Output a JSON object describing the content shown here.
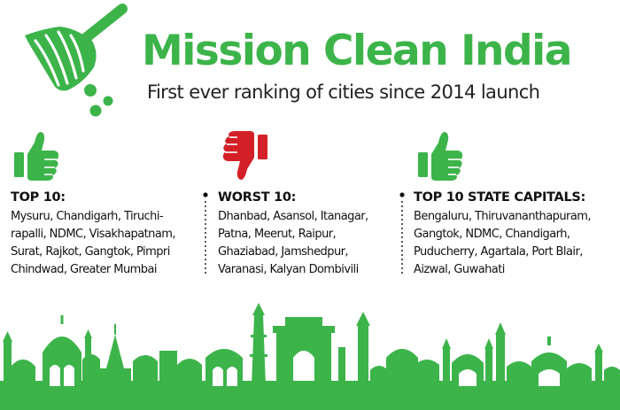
{
  "header": {
    "title": "Mission Clean India",
    "subtitle": "First ever ranking of cities since 2014 launch"
  },
  "icons": {
    "logo": "broom-icon",
    "top10": "thumbs-up-icon",
    "worst10": "thumbs-down-icon",
    "capitals": "thumbs-up-icon"
  },
  "colors": {
    "brand_green": "#3cb44a",
    "thumbs_down_red": "#d32027",
    "text": "#111111"
  },
  "columns": [
    {
      "heading": "TOP 10:",
      "body": "Mysuru, Chandigarh, Tiruchi-\nrapalli, NDMC, Visakhapatnam,\nSurat, Rajkot, Gangtok, Pimpri\nChindwad, Greater Mumbai"
    },
    {
      "heading": "WORST 10:",
      "body": "Dhanbad, Asansol, Itanagar,\nPatna, Meerut, Raipur,\nGhaziabad, Jamshedpur,\nVaranasi, Kalyan Dombivili"
    },
    {
      "heading": "TOP 10 STATE CAPITALS:",
      "body": "Bengaluru, Thiruvananthapuram,\nGangtok, NDMC, Chandigarh,\nPuducherry, Agartala, Port Blair,\nAizwal, Guwahati"
    }
  ]
}
